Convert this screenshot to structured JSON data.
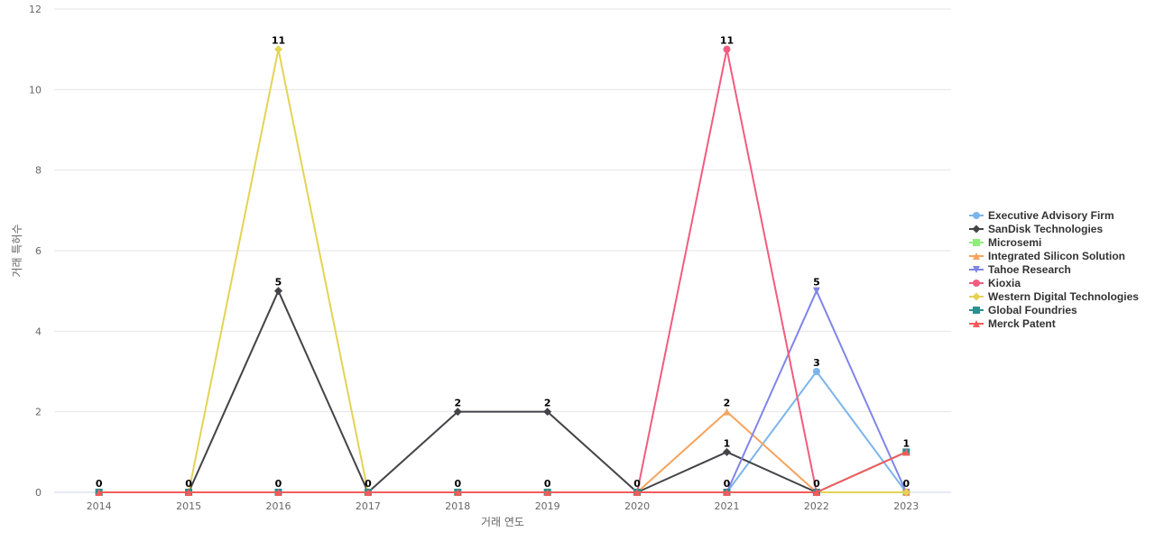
{
  "chart_data": {
    "type": "line",
    "title": "",
    "xlabel": "거래 연도",
    "ylabel": "거래 특허수",
    "x": [
      "2014",
      "2015",
      "2016",
      "2017",
      "2018",
      "2019",
      "2020",
      "2021",
      "2022",
      "2023"
    ],
    "ylim": [
      0,
      12
    ],
    "yticks": [
      0,
      2,
      4,
      6,
      8,
      10,
      12
    ],
    "grid": true,
    "legend": "right",
    "series": [
      {
        "name": "Executive Advisory Firm",
        "color": "#7cb5ec",
        "marker": "circle",
        "values": [
          0,
          0,
          0,
          0,
          0,
          0,
          0,
          0,
          3,
          0
        ]
      },
      {
        "name": "SanDisk Technologies",
        "color": "#434348",
        "marker": "diamond",
        "values": [
          0,
          0,
          5,
          0,
          2,
          2,
          0,
          1,
          0,
          0
        ]
      },
      {
        "name": "Microsemi",
        "color": "#90ed7d",
        "marker": "square",
        "values": [
          0,
          0,
          0,
          0,
          0,
          0,
          0,
          0,
          0,
          0
        ]
      },
      {
        "name": "Integrated Silicon Solution",
        "color": "#f7a35c",
        "marker": "triangle",
        "values": [
          0,
          0,
          0,
          0,
          0,
          0,
          0,
          2,
          0,
          0
        ]
      },
      {
        "name": "Tahoe Research",
        "color": "#8085e9",
        "marker": "triangle-down",
        "values": [
          0,
          0,
          0,
          0,
          0,
          0,
          0,
          0,
          5,
          0
        ]
      },
      {
        "name": "Kioxia",
        "color": "#f15c80",
        "marker": "circle",
        "values": [
          0,
          0,
          0,
          0,
          0,
          0,
          0,
          11,
          0,
          0
        ]
      },
      {
        "name": "Western Digital Technologies",
        "color": "#e4d354",
        "marker": "diamond",
        "values": [
          0,
          0,
          11,
          0,
          0,
          0,
          0,
          0,
          0,
          0
        ]
      },
      {
        "name": "Global Foundries",
        "color": "#2b908f",
        "marker": "square",
        "values": [
          0,
          0,
          0,
          0,
          0,
          0,
          0,
          0,
          0,
          1
        ]
      },
      {
        "name": "Merck Patent",
        "color": "#f45b5b",
        "marker": "triangle",
        "values": [
          0,
          0,
          0,
          0,
          0,
          0,
          0,
          0,
          0,
          1
        ]
      }
    ],
    "data_labels": [
      {
        "x": "2014",
        "value": 0
      },
      {
        "x": "2015",
        "value": 0
      },
      {
        "x": "2016",
        "value": 11
      },
      {
        "x": "2016",
        "value": 5
      },
      {
        "x": "2016",
        "value": 0
      },
      {
        "x": "2017",
        "value": 0
      },
      {
        "x": "2018",
        "value": 2
      },
      {
        "x": "2018",
        "value": 0
      },
      {
        "x": "2019",
        "value": 2
      },
      {
        "x": "2019",
        "value": 0
      },
      {
        "x": "2020",
        "value": 0
      },
      {
        "x": "2021",
        "value": 11
      },
      {
        "x": "2021",
        "value": 2
      },
      {
        "x": "2021",
        "value": 1
      },
      {
        "x": "2021",
        "value": 0
      },
      {
        "x": "2022",
        "value": 5
      },
      {
        "x": "2022",
        "value": 3
      },
      {
        "x": "2022",
        "value": 0
      },
      {
        "x": "2023",
        "value": 1
      },
      {
        "x": "2023",
        "value": 0
      }
    ]
  }
}
